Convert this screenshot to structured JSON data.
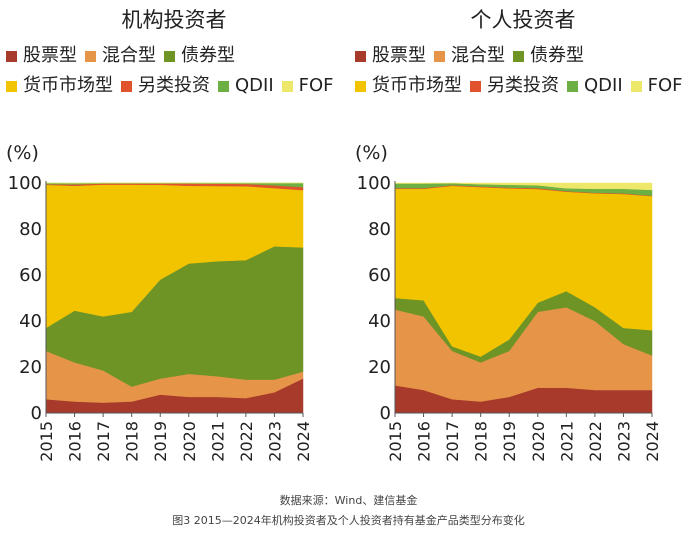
{
  "colors": {
    "股票型": "#a83a2c",
    "混合型": "#e59448",
    "债券型": "#6e9426",
    "货币市场型": "#f2c400",
    "另类投资": "#e0532d",
    "QDII": "#6cb043",
    "FOF": "#eee86a"
  },
  "chart_data": [
    {
      "type": "area",
      "stacked": true,
      "title": "机构投资者",
      "ylabel": "(%)",
      "ylim": [
        0,
        100
      ],
      "yticks": [
        "0",
        "20",
        "40",
        "60",
        "80",
        "100"
      ],
      "categories": [
        "2015",
        "2016",
        "2017",
        "2018",
        "2019",
        "2020",
        "2021",
        "2022",
        "2023",
        "2024"
      ],
      "legend": [
        "股票型",
        "混合型",
        "债券型",
        "货币市场型",
        "另类投资",
        "QDII",
        "FOF"
      ],
      "series": [
        {
          "name": "股票型",
          "values": [
            6,
            5,
            4.5,
            5,
            8,
            7,
            7,
            6.5,
            9,
            15
          ]
        },
        {
          "name": "混合型",
          "values": [
            21,
            17,
            14,
            6.5,
            7,
            10,
            9,
            8,
            5.5,
            3
          ]
        },
        {
          "name": "债券型",
          "values": [
            10,
            22.5,
            23.5,
            32.5,
            43,
            48,
            50,
            52,
            58,
            54
          ]
        },
        {
          "name": "货币市场型",
          "values": [
            62.2,
            54.3,
            57.3,
            55.3,
            41.2,
            33.8,
            32.7,
            32.1,
            25.3,
            24.9
          ]
        },
        {
          "name": "另类投资",
          "values": [
            0.3,
            0.6,
            0.5,
            0.5,
            0.6,
            1,
            1,
            1,
            1.2,
            1.3
          ]
        },
        {
          "name": "QDII",
          "values": [
            0.5,
            0.5,
            0.3,
            0.3,
            0.2,
            0.2,
            0.3,
            0.4,
            1,
            1.8
          ]
        },
        {
          "name": "FOF",
          "values": [
            0,
            0.1,
            0,
            0,
            0,
            0,
            0,
            0,
            0,
            0
          ]
        }
      ]
    },
    {
      "type": "area",
      "stacked": true,
      "title": "个人投资者",
      "ylabel": "(%)",
      "ylim": [
        0,
        100
      ],
      "yticks": [
        "0",
        "20",
        "40",
        "60",
        "80",
        "100"
      ],
      "categories": [
        "2015",
        "2016",
        "2017",
        "2018",
        "2019",
        "2020",
        "2021",
        "2022",
        "2023",
        "2024"
      ],
      "legend": [
        "股票型",
        "混合型",
        "债券型",
        "货币市场型",
        "另类投资",
        "QDII",
        "FOF"
      ],
      "series": [
        {
          "name": "股票型",
          "values": [
            12,
            10,
            6,
            5,
            7,
            11,
            11,
            10,
            10,
            10
          ]
        },
        {
          "name": "混合型",
          "values": [
            33,
            32,
            21,
            17,
            20,
            33,
            35,
            30,
            20,
            15
          ]
        },
        {
          "name": "债券型",
          "values": [
            5,
            7,
            2,
            2.5,
            5,
            4,
            7,
            6,
            7,
            11
          ]
        },
        {
          "name": "货币市场型",
          "values": [
            47.5,
            48.5,
            69.8,
            73.7,
            65.7,
            49.4,
            43.2,
            49.5,
            58.2,
            58.3
          ]
        },
        {
          "name": "另类投资",
          "values": [
            0.3,
            0.3,
            0.3,
            0.3,
            0.3,
            0.4,
            0.3,
            0.3,
            0.3,
            0.2
          ]
        },
        {
          "name": "QDII",
          "values": [
            2,
            2,
            0.8,
            1,
            1.2,
            1.2,
            1.2,
            1.7,
            2,
            2.5
          ]
        },
        {
          "name": "FOF",
          "values": [
            0.2,
            0.2,
            0.1,
            0.5,
            0.8,
            1,
            2.3,
            2.5,
            2.5,
            3
          ]
        }
      ]
    }
  ],
  "footer": {
    "source": "数据来源：Wind、建信基金",
    "caption": "图3 2015—2024年机构投资者及个人投资者持有基金产品类型分布变化"
  }
}
